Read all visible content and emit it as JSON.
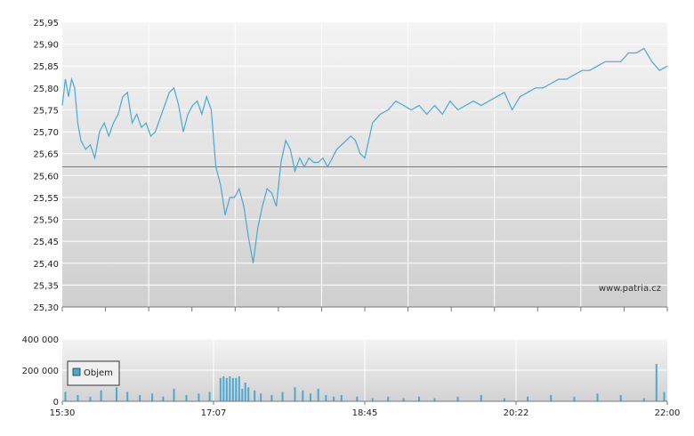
{
  "chart_data": [
    {
      "type": "line",
      "ylim": [
        25.3,
        25.95
      ],
      "ytick_labels": [
        "25,95",
        "25,90",
        "25,85",
        "25,80",
        "25,75",
        "25,70",
        "25,65",
        "25,60",
        "25,55",
        "25,50",
        "25,45",
        "25,40",
        "25,35",
        "25,30"
      ],
      "ytick_values": [
        25.95,
        25.9,
        25.85,
        25.8,
        25.75,
        25.7,
        25.65,
        25.6,
        25.55,
        25.5,
        25.45,
        25.4,
        25.35,
        25.3
      ],
      "xlim": [
        "15:30",
        "22:00"
      ],
      "reference_line": 25.62,
      "watermark": "www.patria.cz",
      "colors": {
        "line": "#4aa8d4",
        "reference": "#e05050"
      },
      "series": [
        {
          "x": [
            "15:30",
            "15:32",
            "15:34",
            "15:36",
            "15:38",
            "15:40",
            "15:42",
            "15:45",
            "15:48",
            "15:51",
            "15:54",
            "15:57",
            "16:00",
            "16:03",
            "16:06",
            "16:09",
            "16:12",
            "16:15",
            "16:18",
            "16:21",
            "16:24",
            "16:27",
            "16:30",
            "16:33",
            "16:36",
            "16:39",
            "16:42",
            "16:45",
            "16:48",
            "16:51",
            "16:54",
            "16:57",
            "17:00",
            "17:03",
            "17:06",
            "17:09",
            "17:12",
            "17:15",
            "17:18",
            "17:21",
            "17:24",
            "17:27",
            "17:30",
            "17:33",
            "17:36",
            "17:39",
            "17:42",
            "17:45",
            "17:48",
            "17:51",
            "17:54",
            "17:57",
            "18:00",
            "18:03",
            "18:06",
            "18:09",
            "18:12",
            "18:15",
            "18:18",
            "18:21",
            "18:24",
            "18:27",
            "18:30",
            "18:33",
            "18:36",
            "18:39",
            "18:42",
            "18:45",
            "18:50",
            "18:55",
            "19:00",
            "19:05",
            "19:10",
            "19:15",
            "19:20",
            "19:25",
            "19:30",
            "19:35",
            "19:40",
            "19:45",
            "19:50",
            "19:55",
            "20:00",
            "20:05",
            "20:10",
            "20:15",
            "20:20",
            "20:25",
            "20:30",
            "20:35",
            "20:40",
            "20:45",
            "20:50",
            "20:55",
            "21:00",
            "21:05",
            "21:10",
            "21:15",
            "21:20",
            "21:25",
            "21:30",
            "21:35",
            "21:40",
            "21:45",
            "21:50",
            "21:55",
            "22:00"
          ],
          "y": [
            25.76,
            25.82,
            25.78,
            25.82,
            25.8,
            25.72,
            25.68,
            25.66,
            25.67,
            25.64,
            25.7,
            25.72,
            25.69,
            25.72,
            25.74,
            25.78,
            25.79,
            25.72,
            25.74,
            25.71,
            25.72,
            25.69,
            25.7,
            25.73,
            25.76,
            25.79,
            25.8,
            25.76,
            25.7,
            25.74,
            25.76,
            25.77,
            25.74,
            25.78,
            25.75,
            25.62,
            25.58,
            25.51,
            25.55,
            25.55,
            25.57,
            25.53,
            25.46,
            25.4,
            25.48,
            25.53,
            25.57,
            25.56,
            25.53,
            25.63,
            25.68,
            25.66,
            25.61,
            25.64,
            25.62,
            25.64,
            25.63,
            25.63,
            25.64,
            25.62,
            25.64,
            25.66,
            25.67,
            25.68,
            25.69,
            25.68,
            25.65,
            25.64,
            25.72,
            25.74,
            25.75,
            25.77,
            25.76,
            25.75,
            25.76,
            25.74,
            25.76,
            25.74,
            25.77,
            25.75,
            25.76,
            25.77,
            25.76,
            25.77,
            25.78,
            25.79,
            25.75,
            25.78,
            25.79,
            25.8,
            25.8,
            25.81,
            25.82,
            25.82,
            25.83,
            25.84,
            25.84,
            25.85,
            25.86,
            25.86,
            25.86,
            25.88,
            25.88,
            25.89,
            25.86,
            25.84,
            25.85
          ]
        }
      ]
    },
    {
      "type": "bar",
      "ylim": [
        0,
        400000
      ],
      "ytick_labels": [
        "400 000",
        "200 000",
        "0"
      ],
      "ytick_values": [
        400000,
        200000,
        0
      ],
      "xtick_labels": [
        "15:30",
        "17:07",
        "18:45",
        "20:22",
        "22:00"
      ],
      "legend": "Objem",
      "colors": {
        "bars": "#4aa8d4"
      },
      "series": [
        {
          "name": "Objem",
          "x": [
            "15:32",
            "15:40",
            "15:48",
            "15:55",
            "16:05",
            "16:12",
            "16:20",
            "16:28",
            "16:35",
            "16:42",
            "16:50",
            "16:58",
            "17:05",
            "17:12",
            "17:14",
            "17:16",
            "17:18",
            "17:20",
            "17:22",
            "17:24",
            "17:26",
            "17:28",
            "17:30",
            "17:34",
            "17:38",
            "17:45",
            "17:52",
            "18:00",
            "18:05",
            "18:10",
            "18:15",
            "18:20",
            "18:25",
            "18:30",
            "18:40",
            "18:50",
            "19:00",
            "19:10",
            "19:20",
            "19:30",
            "19:45",
            "20:00",
            "20:15",
            "20:30",
            "20:45",
            "21:00",
            "21:15",
            "21:30",
            "21:45",
            "21:53",
            "21:58"
          ],
          "values": [
            60000,
            40000,
            30000,
            70000,
            90000,
            60000,
            40000,
            50000,
            30000,
            80000,
            40000,
            50000,
            60000,
            150000,
            160000,
            150000,
            160000,
            150000,
            150000,
            160000,
            80000,
            120000,
            90000,
            70000,
            50000,
            40000,
            60000,
            90000,
            70000,
            50000,
            80000,
            40000,
            30000,
            40000,
            30000,
            20000,
            30000,
            20000,
            30000,
            20000,
            30000,
            40000,
            20000,
            30000,
            40000,
            30000,
            50000,
            40000,
            20000,
            240000,
            60000
          ]
        }
      ]
    }
  ]
}
